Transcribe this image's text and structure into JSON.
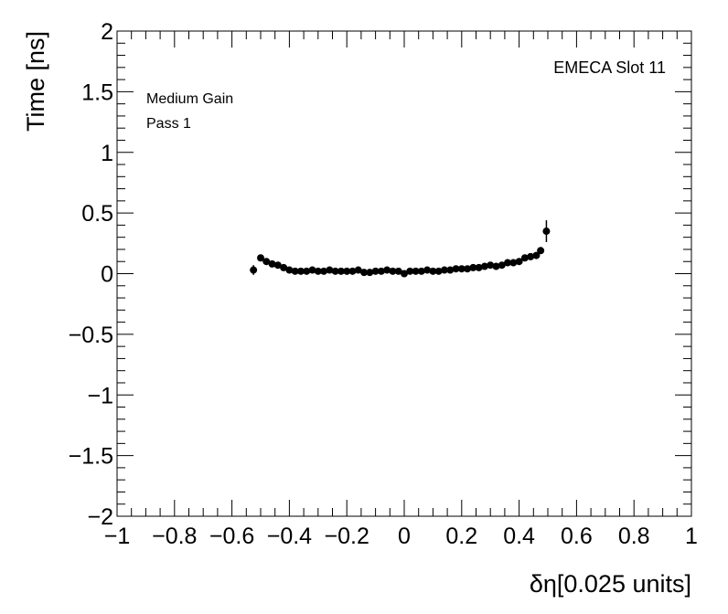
{
  "chart_data": {
    "type": "scatter",
    "title": "",
    "xlabel": "δη[0.025 units]",
    "ylabel": "Time [ns]",
    "xlim": [
      -1,
      1
    ],
    "ylim": [
      -2,
      2
    ],
    "xticks": [
      -1,
      -0.8,
      -0.6,
      -0.4,
      -0.2,
      0,
      0.2,
      0.4,
      0.6,
      0.8,
      1
    ],
    "yticks": [
      -2,
      -1.5,
      -1,
      -0.5,
      0,
      0.5,
      1,
      1.5,
      2
    ],
    "xtick_labels": [
      "−1",
      "−0.8",
      "−0.6",
      "−0.4",
      "−0.2",
      "0",
      "0.2",
      "0.4",
      "0.6",
      "0.8",
      "1"
    ],
    "ytick_labels": [
      "−2",
      "−1.5",
      "−1",
      "−0.5",
      "0",
      "0.5",
      "1",
      "1.5",
      "2"
    ],
    "grid": false,
    "annotations": {
      "top_right": "EMECA Slot 11",
      "line1": "Medium Gain",
      "line2": "Pass 1"
    },
    "series": [
      {
        "x": [
          -0.525,
          -0.5,
          -0.48,
          -0.46,
          -0.44,
          -0.42,
          -0.4,
          -0.38,
          -0.36,
          -0.34,
          -0.32,
          -0.3,
          -0.28,
          -0.26,
          -0.24,
          -0.22,
          -0.2,
          -0.18,
          -0.16,
          -0.14,
          -0.12,
          -0.1,
          -0.08,
          -0.06,
          -0.04,
          -0.02,
          0,
          0.02,
          0.04,
          0.06,
          0.08,
          0.1,
          0.12,
          0.14,
          0.16,
          0.18,
          0.2,
          0.22,
          0.24,
          0.26,
          0.28,
          0.3,
          0.32,
          0.34,
          0.36,
          0.38,
          0.4,
          0.42,
          0.44,
          0.46,
          0.475,
          0.495
        ],
        "y": [
          0.03,
          0.13,
          0.1,
          0.08,
          0.07,
          0.05,
          0.03,
          0.02,
          0.02,
          0.02,
          0.03,
          0.02,
          0.02,
          0.03,
          0.02,
          0.02,
          0.02,
          0.02,
          0.03,
          0.01,
          0.01,
          0.02,
          0.02,
          0.03,
          0.02,
          0.02,
          0.0,
          0.02,
          0.02,
          0.02,
          0.03,
          0.02,
          0.02,
          0.03,
          0.03,
          0.04,
          0.04,
          0.04,
          0.05,
          0.05,
          0.06,
          0.07,
          0.06,
          0.07,
          0.09,
          0.09,
          0.1,
          0.13,
          0.14,
          0.15,
          0.19,
          0.35
        ],
        "yerr": [
          0.04,
          0.025,
          0.02,
          0.015,
          0.015,
          0.015,
          0.015,
          0.015,
          0.015,
          0.015,
          0.015,
          0.015,
          0.015,
          0.015,
          0.015,
          0.015,
          0.015,
          0.015,
          0.015,
          0.015,
          0.015,
          0.015,
          0.015,
          0.015,
          0.015,
          0.015,
          0.015,
          0.015,
          0.015,
          0.015,
          0.015,
          0.015,
          0.015,
          0.015,
          0.015,
          0.015,
          0.015,
          0.015,
          0.015,
          0.015,
          0.015,
          0.015,
          0.015,
          0.015,
          0.015,
          0.015,
          0.015,
          0.015,
          0.015,
          0.015,
          0.02,
          0.09
        ]
      }
    ]
  }
}
